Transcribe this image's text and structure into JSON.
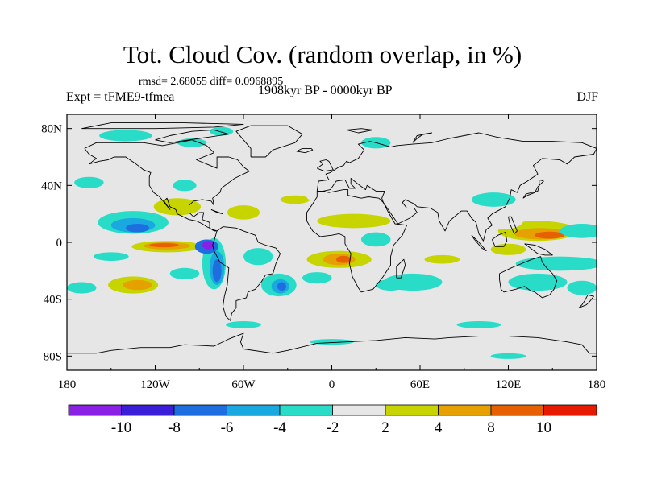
{
  "title": "Tot. Cloud Cov. (random overlap, in %)",
  "stats": "rmsd= 2.68055 diff= 0.0968895",
  "experiment": "Expt = tFME9-tfmea",
  "period": "1908kyr BP - 0000kyr BP",
  "season": "DJF",
  "chart_data": {
    "type": "heatmap",
    "projection": "cylindrical-equidistant",
    "x_tick_labels": [
      "180",
      "120W",
      "60W",
      "0",
      "60E",
      "120E",
      "180"
    ],
    "y_tick_labels": [
      "80N",
      "40N",
      "0",
      "40S",
      "80S"
    ],
    "xlim": [
      -180,
      180
    ],
    "ylim": [
      -90,
      90
    ],
    "colorbar": {
      "labels": [
        "-10",
        "-8",
        "-6",
        "-4",
        "-2",
        "2",
        "4",
        "8",
        "10"
      ],
      "colors": [
        "#8a1fe6",
        "#3a1ed8",
        "#1e6ee0",
        "#1aa8e0",
        "#28dcc8",
        "#e6e6e6",
        "#c8d400",
        "#e6a000",
        "#e66000",
        "#e61a00"
      ]
    },
    "background_color": "#e6e6e6",
    "anomaly_regions": [
      {
        "name": "tropical-eastern-pacific-positive",
        "lon": -110,
        "lat": -5,
        "level": "10"
      },
      {
        "name": "western-pacific-positive",
        "lon": 145,
        "lat": 5,
        "level": "10"
      },
      {
        "name": "south-atlantic-africa-positive",
        "lon": 5,
        "lat": -10,
        "level": "8"
      },
      {
        "name": "south-pacific-positive",
        "lon": -135,
        "lat": -30,
        "level": "8"
      },
      {
        "name": "north-pacific-negative",
        "lon": -140,
        "lat": 10,
        "level": "-6"
      },
      {
        "name": "peru-coast-negative",
        "lon": -80,
        "lat": -5,
        "level": "-10"
      },
      {
        "name": "south-atlantic-negative",
        "lon": -35,
        "lat": -30,
        "level": "-6"
      }
    ]
  }
}
